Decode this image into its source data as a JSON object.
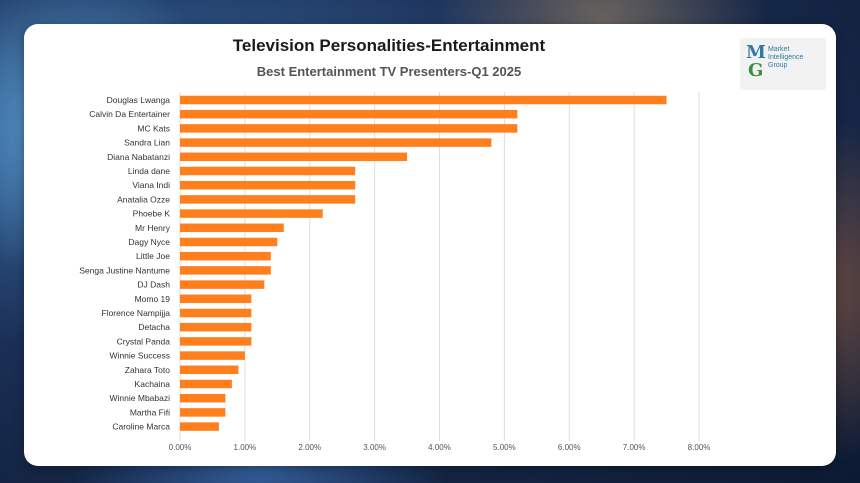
{
  "chart_data": {
    "type": "bar",
    "orientation": "horizontal",
    "title": "Television Personalities-Entertainment",
    "subtitle": "Best Entertainment TV Presenters-Q1 2025",
    "categories": [
      "Douglas Lwanga",
      "Calvin Da Entertainer",
      "MC Kats",
      "Sandra Lian",
      "Diana Nabatanzi",
      "Linda dane",
      "Viana Indi",
      "Anatalia Ozze",
      "Phoebe K",
      "Mr  Henry",
      "Dagy Nyce",
      "Little Joe",
      "Senga Justine Nantume",
      "DJ Dash",
      "Momo 19",
      "Florence Nampijja",
      "Detacha",
      "Crystal Panda",
      "Winnie Success",
      "Zahara Toto",
      "Kachaina",
      "Winnie Mbabazi",
      "Martha Fifi",
      "Caroline Marca"
    ],
    "values": [
      7.5,
      5.2,
      5.2,
      4.8,
      3.5,
      2.7,
      2.7,
      2.7,
      2.2,
      1.6,
      1.5,
      1.4,
      1.4,
      1.3,
      1.1,
      1.1,
      1.1,
      1.1,
      1.0,
      0.9,
      0.8,
      0.7,
      0.7,
      0.6
    ],
    "value_format": "percent",
    "xlim": [
      0,
      8
    ],
    "x_ticks": [
      "0.00%",
      "1.00%",
      "2.00%",
      "3.00%",
      "4.00%",
      "5.00%",
      "6.00%",
      "7.00%",
      "8.00%"
    ],
    "grid": true,
    "bar_color": "#FF7F1E",
    "legend": "none"
  },
  "logo": {
    "letters": "MG",
    "lines": [
      "Market",
      "Intelligence",
      "Group"
    ],
    "colors": {
      "blue": "#2e7aa8",
      "green": "#3a8f3a"
    }
  }
}
